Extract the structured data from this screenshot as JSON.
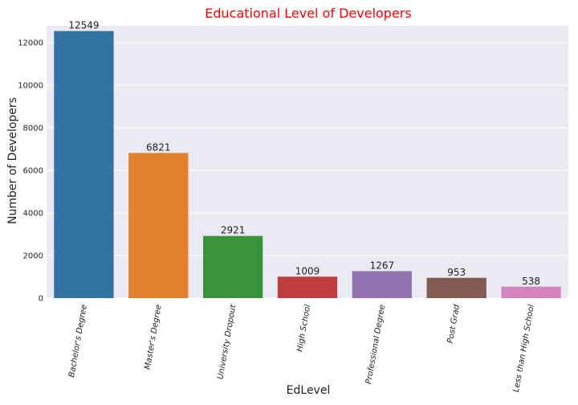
{
  "chart_data": {
    "type": "bar",
    "title": "Educational Level of Developers",
    "title_color": "#ff0000",
    "xlabel": "EdLevel",
    "ylabel": "Number of Developers",
    "ylim": [
      0,
      12800
    ],
    "yticks": [
      0,
      2000,
      4000,
      6000,
      8000,
      10000,
      12000
    ],
    "grid": true,
    "legend": "none",
    "background_color": "#eaeaf2",
    "categories": [
      "Bachelor's Degree",
      "Master's Degree",
      "University Dropout",
      "High School",
      "Professional Degree",
      "Post Grad",
      "Less than High School"
    ],
    "values": [
      12549,
      6821,
      2921,
      1009,
      1267,
      953,
      538
    ],
    "colors": [
      "#3274a1",
      "#e1812c",
      "#3a923a",
      "#c03d3e",
      "#9372b2",
      "#845b53",
      "#d684bd"
    ]
  }
}
